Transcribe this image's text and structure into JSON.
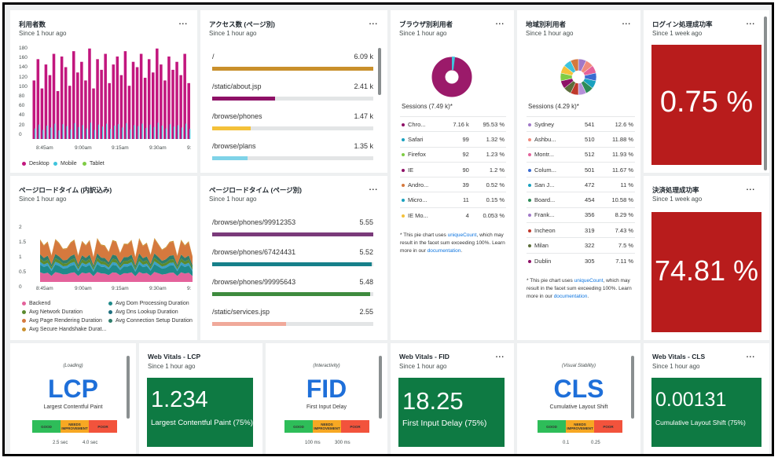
{
  "widgets": {
    "users": {
      "title": "利用者数",
      "subtitle": "Since 1 hour ago",
      "menu": "...",
      "yticks": [
        "180",
        "160",
        "140",
        "120",
        "100",
        "80",
        "60",
        "40",
        "20",
        "0"
      ],
      "xticks": [
        "8:45am",
        "9:00am",
        "9:15am",
        "9:30am",
        "9:"
      ],
      "legend": [
        {
          "label": "Desktop",
          "color": "#c2177e"
        },
        {
          "label": "Mobile",
          "color": "#3fc4dd"
        },
        {
          "label": "Tablet",
          "color": "#7fcc45"
        }
      ]
    },
    "access": {
      "title": "アクセス数 (ページ別)",
      "subtitle": "Since 1 hour ago",
      "menu": "...",
      "rows": [
        {
          "label": "/",
          "value": "6.09 k",
          "color": "#c9902c",
          "pct": 100
        },
        {
          "label": "/static/about.jsp",
          "value": "2.41 k",
          "color": "#8e1167",
          "pct": 39
        },
        {
          "label": "/browse/phones",
          "value": "1.47 k",
          "color": "#f4c13a",
          "pct": 24
        },
        {
          "label": "/browse/plans",
          "value": "1.35 k",
          "color": "#7fd3e8",
          "pct": 22
        }
      ]
    },
    "browser": {
      "title": "ブラウザ別利用者",
      "subtitle": "Since 1 hour ago",
      "menu": "...",
      "sessions": "Sessions (7.49 k)*",
      "rows": [
        {
          "name": "Chro...",
          "count": "7.16 k",
          "pct": "95.53 %",
          "color": "#8e1167"
        },
        {
          "name": "Safari",
          "count": "99",
          "pct": "1.32 %",
          "color": "#1aa1bf"
        },
        {
          "name": "Firefox",
          "count": "92",
          "pct": "1.23 %",
          "color": "#7fcc45"
        },
        {
          "name": "IE",
          "count": "90",
          "pct": "1.2 %",
          "color": "#8e1167"
        },
        {
          "name": "Andro...",
          "count": "39",
          "pct": "0.52 %",
          "color": "#d5793e"
        },
        {
          "name": "Micro...",
          "count": "11",
          "pct": "0.15 %",
          "color": "#1aa1bf"
        },
        {
          "name": "IE Mo...",
          "count": "4",
          "pct": "0.053 %",
          "color": "#f4c13a"
        }
      ],
      "note_prefix": "* This pie chart uses ",
      "note_link": "uniqueCount",
      "note_mid": ", which may result in the facet sum exceeding 100%. Learn more in our ",
      "note_link2": "documentation",
      "note_end": "."
    },
    "region": {
      "title": "地域別利用者",
      "subtitle": "Since 1 hour ago",
      "menu": "...",
      "sessions": "Sessions (4.29 k)*",
      "rows": [
        {
          "name": "Sydney",
          "count": "541",
          "pct": "12.6 %",
          "color": "#a078c8"
        },
        {
          "name": "Ashbu...",
          "count": "510",
          "pct": "11.88 %",
          "color": "#f08a7c"
        },
        {
          "name": "Montr...",
          "count": "512",
          "pct": "11.93 %",
          "color": "#e4629b"
        },
        {
          "name": "Colum...",
          "count": "501",
          "pct": "11.67 %",
          "color": "#3a6bd1"
        },
        {
          "name": "San J...",
          "count": "472",
          "pct": "11 %",
          "color": "#1aa1bf"
        },
        {
          "name": "Board...",
          "count": "454",
          "pct": "10.58 %",
          "color": "#2e8b57"
        },
        {
          "name": "Frank...",
          "count": "356",
          "pct": "8.29 %",
          "color": "#a078c8"
        },
        {
          "name": "Incheon",
          "count": "319",
          "pct": "7.43 %",
          "color": "#c0392b"
        },
        {
          "name": "Milan",
          "count": "322",
          "pct": "7.5 %",
          "color": "#5b6d3a"
        },
        {
          "name": "Dublin",
          "count": "305",
          "pct": "7.11 %",
          "color": "#8e1167"
        }
      ],
      "note_prefix": "* This pie chart uses ",
      "note_link": "uniqueCount",
      "note_mid": ", which may result in the facet sum exceeding 100%. Learn more in our ",
      "note_link2": "documentation",
      "note_end": "."
    },
    "login": {
      "title": "ログイン処理成功率",
      "subtitle": "Since 1 week ago",
      "menu": "...",
      "value": "0.75 %"
    },
    "loadtime": {
      "title": "ページロードタイム (内訳込み)",
      "subtitle": "Since 1 hour ago",
      "yticks": [
        "2",
        "1.5",
        "1",
        "0.5",
        "0"
      ],
      "xticks": [
        "8:45am",
        "9:00am",
        "9:15am",
        "9:30am",
        "9:"
      ],
      "legend": [
        {
          "label": "Backend",
          "color": "#e4629b"
        },
        {
          "label": "Avg Dom Processing Duration",
          "color": "#1f8a8a"
        },
        {
          "label": "Avg Network Duration",
          "color": "#5b8a2e"
        },
        {
          "label": "Avg Dns Lookup Duration",
          "color": "#1f6f7f"
        },
        {
          "label": "Avg Page Rendering Duration",
          "color": "#d5793e"
        },
        {
          "label": "Avg Connection Setup Duration",
          "color": "#2e7d6b"
        },
        {
          "label": "Avg Secure Handshake Durat...",
          "color": "#c9902c"
        }
      ]
    },
    "pageload": {
      "title": "ページロードタイム (ページ別)",
      "subtitle": "Since 1 hour ago",
      "menu": "...",
      "rows": [
        {
          "label": "/browse/phones/99912353",
          "value": "5.55",
          "color": "#7a3a7a",
          "pct": 100
        },
        {
          "label": "/browse/phones/67424431",
          "value": "5.52",
          "color": "#16808a",
          "pct": 99
        },
        {
          "label": "/browse/phones/99995643",
          "value": "5.48",
          "color": "#3e8b3e",
          "pct": 98
        },
        {
          "label": "/static/services.jsp",
          "value": "2.55",
          "color": "#f0a99a",
          "pct": 46
        }
      ]
    },
    "payment": {
      "title": "決済処理成功率",
      "subtitle": "Since 1 week ago",
      "menu": "...",
      "value": "74.81 %"
    },
    "lcp_info": {
      "phase": "(Loading)",
      "abbr": "LCP",
      "name": "Largest Contentful Paint",
      "t1": "2.5 sec",
      "t2": "4.0 sec"
    },
    "lcp": {
      "title": "Web Vitals - LCP",
      "subtitle": "Since 1 hour ago",
      "value": "1.234",
      "caption": "Largest Contentful Paint (75%)"
    },
    "fid_info": {
      "phase": "(Interactivity)",
      "abbr": "FID",
      "name": "First Input Delay",
      "t1": "100 ms",
      "t2": "300 ms"
    },
    "fid": {
      "title": "Web Vitals - FID",
      "subtitle": "Since 1 hour ago",
      "menu": "...",
      "value": "18.25",
      "caption": "First Input Delay (75%)"
    },
    "cls_info": {
      "phase": "(Visual Stability)",
      "abbr": "CLS",
      "name": "Cumulative Layout Shift",
      "t1": "0.1",
      "t2": "0.25"
    },
    "cls": {
      "title": "Web Vitals - CLS",
      "subtitle": "Since 1 hour ago",
      "menu": "...",
      "value": "0.00131",
      "caption": "Cumulative Layout Shift (75%)"
    },
    "scale": {
      "good": "GOOD",
      "needs": "NEEDS IMPROVEMENT",
      "poor": "POOR"
    }
  }
}
